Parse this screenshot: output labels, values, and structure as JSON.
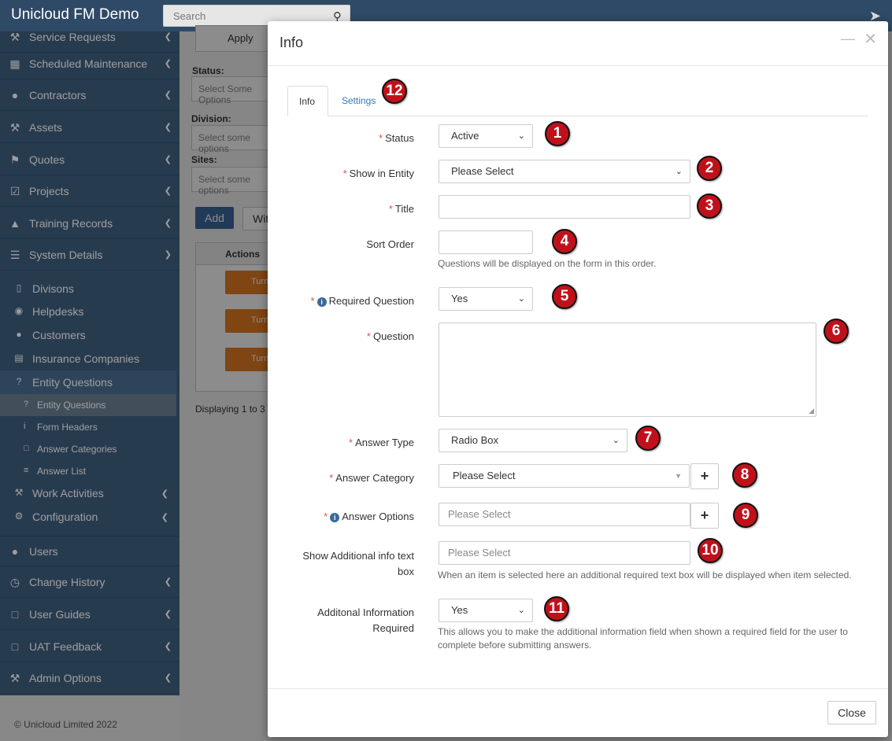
{
  "app": {
    "title": "Unicloud FM Demo",
    "search_placeholder": "Search"
  },
  "sidebar": {
    "items": [
      {
        "label": "Service Requests",
        "icon": "wrench-icon"
      },
      {
        "label": "Scheduled Maintenance",
        "icon": "calendar-icon"
      },
      {
        "label": "Contractors",
        "icon": "users-icon"
      },
      {
        "label": "Assets",
        "icon": "wrench-icon"
      },
      {
        "label": "Quotes",
        "icon": "tags-icon"
      },
      {
        "label": "Projects",
        "icon": "check-square-icon"
      },
      {
        "label": "Training Records",
        "icon": "graduation-cap-icon"
      },
      {
        "label": "System Details",
        "icon": "list-icon"
      }
    ],
    "system_sub": [
      {
        "label": "Divisons",
        "icon": "building-icon"
      },
      {
        "label": "Helpdesks",
        "icon": "globe-icon"
      },
      {
        "label": "Customers",
        "icon": "users-icon"
      },
      {
        "label": "Insurance Companies",
        "icon": "briefcase-icon"
      },
      {
        "label": "Entity Questions",
        "icon": "question-circle-icon"
      }
    ],
    "entity_sub": [
      {
        "label": "Entity Questions",
        "icon": "question-circle-icon"
      },
      {
        "label": "Form Headers",
        "icon": "info-icon"
      },
      {
        "label": "Answer Categories",
        "icon": "folder-open-icon"
      },
      {
        "label": "Answer List",
        "icon": "list-ol-icon"
      }
    ],
    "system_sub2": [
      {
        "label": "Work Activities",
        "icon": "wrench-icon"
      },
      {
        "label": "Configuration",
        "icon": "cogs-icon"
      }
    ],
    "bottom_items": [
      {
        "label": "Users",
        "icon": "users-icon"
      },
      {
        "label": "Change History",
        "icon": "clock-icon"
      },
      {
        "label": "User Guides",
        "icon": "folder-icon"
      },
      {
        "label": "UAT Feedback",
        "icon": "folder-icon"
      },
      {
        "label": "Admin Options",
        "icon": "wrench-icon"
      }
    ],
    "copyright": "© Unicloud Limited 2022"
  },
  "background": {
    "apply_label": "Apply",
    "status_label": "Status:",
    "status_placeholder": "Select Some Options",
    "division_label": "Division:",
    "division_placeholder": "Select some options",
    "sites_label": "Sites:",
    "sites_placeholder": "Select some options",
    "add_label": "Add",
    "with_label": "With",
    "actions_header": "Actions",
    "row_btn_label": "Turn",
    "displaying_text": "Displaying 1 to 3"
  },
  "modal": {
    "title": "Info",
    "tabs": [
      {
        "label": "Info"
      },
      {
        "label": "Settings"
      }
    ],
    "fields": {
      "status": {
        "label": "Status",
        "value": "Active"
      },
      "show_in_entity": {
        "label": "Show in Entity",
        "value": "Please Select"
      },
      "title": {
        "label": "Title",
        "value": ""
      },
      "sort_order": {
        "label": "Sort Order",
        "value": "",
        "help": "Questions will be displayed on the form in this order."
      },
      "required_question": {
        "label": "Required Question",
        "value": "Yes"
      },
      "question": {
        "label": "Question",
        "value": ""
      },
      "answer_type": {
        "label": "Answer Type",
        "value": "Radio Box"
      },
      "answer_category": {
        "label": "Answer Category",
        "value": "Please Select"
      },
      "answer_options": {
        "label": "Answer Options",
        "placeholder": "Please Select"
      },
      "show_additional": {
        "label_line1": "Show Additional info text",
        "label_line2": "box",
        "placeholder": "Please Select",
        "help": "When an item is selected here an additional required text box will be displayed when item selected."
      },
      "additional_required": {
        "label_line1": "Additonal Information",
        "label_line2": "Required",
        "value": "Yes",
        "help_line1": "This allows you to make the additional information field when shown a required field for the user to",
        "help_line2": "complete before submitting answers."
      }
    },
    "required_marker": "*",
    "plus_symbol": "+",
    "close_label": "Close",
    "badges": [
      "1",
      "2",
      "3",
      "4",
      "5",
      "6",
      "7",
      "8",
      "9",
      "10",
      "11",
      "12"
    ],
    "badge_color": "#c0111b"
  }
}
